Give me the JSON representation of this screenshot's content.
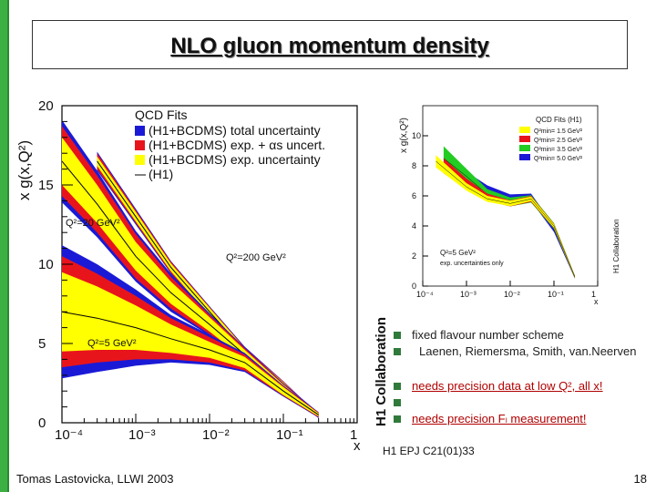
{
  "slide": {
    "title": "NLO gluon momentum density",
    "author": "Tomas Lastovicka, LLWI 2003",
    "page_number": "18",
    "reference": "H1 EPJ C21(01)33",
    "bullets": [
      {
        "text": "fixed flavour number scheme",
        "highlight": false
      },
      {
        "text": "Laenen, Riemersma, Smith, van.Neerven",
        "highlight": false
      },
      {
        "text": "needs precision data at low Q², all x!",
        "highlight": true
      },
      {
        "text": "",
        "highlight": false
      },
      {
        "text": "needs precision Fₗ measurement!",
        "highlight": true
      }
    ],
    "colors": {
      "accent_bar": "#3cb043",
      "bullet": "#2f7a3a",
      "highlight_text": "#b00000"
    }
  },
  "chart_data": [
    {
      "type": "area",
      "title": "",
      "xlabel": "x",
      "ylabel": "x g(x,Q²)",
      "xscale": "log",
      "xlim": [
        0.0001,
        1
      ],
      "ylim": [
        0,
        20
      ],
      "x_ticks": [
        "10⁻⁴",
        "10⁻³",
        "10⁻²",
        "10⁻¹",
        "1"
      ],
      "y_ticks": [
        "0",
        "5",
        "10",
        "15",
        "20"
      ],
      "collaboration": "H1 Collaboration",
      "legend": {
        "header": "QCD Fits",
        "entries": [
          {
            "label": "(H1+BCDMS) total uncertainty",
            "color": "#1a1ad6"
          },
          {
            "label": "(H1+BCDMS) exp. + αs uncert.",
            "color": "#e8141c"
          },
          {
            "label": "(H1+BCDMS) exp. uncertainty",
            "color": "#ffff00"
          },
          {
            "label": "(H1)",
            "color": "#000000"
          }
        ]
      },
      "series": [
        {
          "name": "Q²=200 GeV²",
          "x": [
            0.0003,
            0.001,
            0.003,
            0.01,
            0.03,
            0.1,
            0.3
          ],
          "central": [
            16.5,
            13.0,
            9.8,
            7.0,
            4.5,
            2.4,
            0.4
          ],
          "yellow": [
            0.3,
            0.3,
            0.25,
            0.25,
            0.2,
            0.15,
            0.08
          ],
          "red": [
            0.5,
            0.4,
            0.35,
            0.3,
            0.25,
            0.2,
            0.1
          ],
          "blue": [
            0.6,
            0.5,
            0.4,
            0.35,
            0.3,
            0.22,
            0.12
          ]
        },
        {
          "name": "Q²=20 GeV²",
          "x": [
            0.0001,
            0.0003,
            0.001,
            0.003,
            0.01,
            0.03,
            0.1,
            0.3
          ],
          "central": [
            16.5,
            13.8,
            10.5,
            8.2,
            6.2,
            4.3,
            2.2,
            0.5
          ],
          "yellow": [
            1.5,
            1.2,
            0.9,
            0.7,
            0.45,
            0.3,
            0.2,
            0.1
          ],
          "red": [
            2.2,
            1.8,
            1.4,
            1.0,
            0.6,
            0.4,
            0.25,
            0.12
          ],
          "blue": [
            2.6,
            2.1,
            1.6,
            1.2,
            0.7,
            0.45,
            0.3,
            0.15
          ]
        },
        {
          "name": "Q²=5 GeV²",
          "x": [
            0.0001,
            0.0003,
            0.001,
            0.003,
            0.01,
            0.03,
            0.1,
            0.3
          ],
          "central": [
            7.0,
            6.6,
            6.0,
            5.3,
            4.6,
            3.8,
            2.0,
            0.5
          ],
          "yellow": [
            2.5,
            2.0,
            1.4,
            0.9,
            0.5,
            0.35,
            0.25,
            0.1
          ],
          "red": [
            3.5,
            2.8,
            2.0,
            1.3,
            0.8,
            0.5,
            0.3,
            0.15
          ],
          "blue": [
            4.2,
            3.4,
            2.4,
            1.5,
            0.95,
            0.6,
            0.35,
            0.18
          ]
        }
      ],
      "annotations": [
        "Q²=20 GeV²",
        "Q²=200 GeV²",
        "Q²=5 GeV²"
      ]
    },
    {
      "type": "area",
      "title": "",
      "xlabel": "x",
      "ylabel": "x g(x,Q²)",
      "xscale": "log",
      "xlim": [
        0.0001,
        1
      ],
      "ylim": [
        0,
        12
      ],
      "x_ticks": [
        "10⁻⁴",
        "10⁻³",
        "10⁻²",
        "10⁻¹",
        "1"
      ],
      "y_ticks": [
        "0",
        "2",
        "4",
        "6",
        "8",
        "10"
      ],
      "collaboration": "H1 Collaboration",
      "legend": {
        "header": "QCD Fits (H1)",
        "entries": [
          {
            "label": "Q²min= 1.5 GeV²",
            "color": "#ffff00"
          },
          {
            "label": "Q²min= 2.5 GeV²",
            "color": "#e8141c"
          },
          {
            "label": "Q²min= 3.5 GeV²",
            "color": "#22cc22"
          },
          {
            "label": "Q²min= 5.0 GeV²",
            "color": "#1a1ad6"
          }
        ]
      },
      "series": [
        {
          "name": "Q²min= 5.0 GeV²",
          "x": [
            0.001,
            0.003,
            0.01,
            0.03,
            0.1,
            0.3
          ],
          "central": [
            7.0,
            6.3,
            5.8,
            5.9,
            3.8,
            0.6
          ],
          "band": [
            0.6,
            0.4,
            0.3,
            0.25,
            0.2,
            0.1
          ]
        },
        {
          "name": "Q²min= 3.5 GeV²",
          "x": [
            0.0003,
            0.001,
            0.003,
            0.01,
            0.03,
            0.1,
            0.3
          ],
          "central": [
            8.5,
            7.3,
            6.1,
            5.6,
            5.8,
            4.0,
            0.6
          ],
          "band": [
            0.8,
            0.5,
            0.35,
            0.3,
            0.25,
            0.2,
            0.1
          ]
        },
        {
          "name": "Q²min= 2.5 GeV²",
          "x": [
            0.0003,
            0.001,
            0.003,
            0.01,
            0.03,
            0.1,
            0.3
          ],
          "central": [
            8.0,
            6.8,
            5.9,
            5.5,
            5.8,
            4.0,
            0.6
          ],
          "band": [
            0.5,
            0.35,
            0.25,
            0.2,
            0.2,
            0.15,
            0.08
          ]
        },
        {
          "name": "Q²min= 1.5 GeV²",
          "x": [
            0.0002,
            0.001,
            0.003,
            0.01,
            0.03,
            0.1,
            0.3
          ],
          "central": [
            8.3,
            6.6,
            5.8,
            5.5,
            5.8,
            4.0,
            0.6
          ],
          "band": [
            0.4,
            0.25,
            0.2,
            0.18,
            0.15,
            0.12,
            0.06
          ]
        }
      ],
      "annotations": [
        "Q²=5 GeV²",
        "exp. uncertainties only"
      ]
    }
  ]
}
